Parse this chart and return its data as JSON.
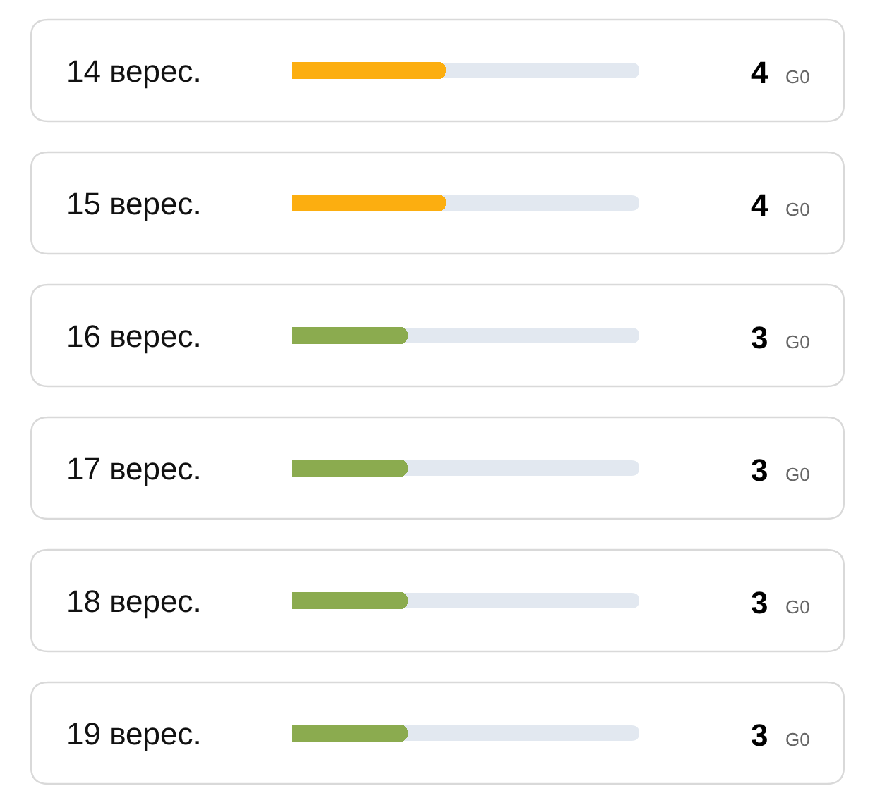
{
  "chart_data": {
    "type": "bar",
    "orientation": "horizontal",
    "categories": [
      "14 верес.",
      "15 верес.",
      "16 верес.",
      "17 верес.",
      "18 верес.",
      "19 верес."
    ],
    "values": [
      4,
      4,
      3,
      3,
      3,
      3
    ],
    "colors": [
      "#fcae10",
      "#fcae10",
      "#8bab4f",
      "#8bab4f",
      "#8bab4f",
      "#8bab4f"
    ],
    "value_labels": [
      "4 G0",
      "4 G0",
      "3 G0",
      "3 G0",
      "3 G0",
      "3 G0"
    ],
    "xlim": [
      0,
      9
    ],
    "tick_labels": "y",
    "grid": false,
    "legend": false
  }
}
